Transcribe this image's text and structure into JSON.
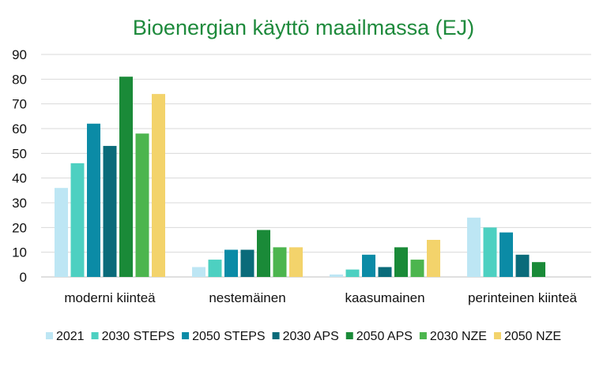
{
  "chart_data": {
    "type": "bar",
    "title": "Bioenergian käyttö maailmassa (EJ)",
    "xlabel": "",
    "ylabel": "",
    "ylim": [
      0,
      90
    ],
    "yticks": [
      0,
      10,
      20,
      30,
      40,
      50,
      60,
      70,
      80,
      90
    ],
    "grid": true,
    "legend_position": "bottom",
    "categories": [
      "moderni kiinteä",
      "nestemäinen",
      "kaasumainen",
      "perinteinen kiinteä"
    ],
    "series": [
      {
        "name": "2021",
        "color": "#bde6f4",
        "values": [
          36,
          4,
          1,
          24
        ]
      },
      {
        "name": "2030 STEPS",
        "color": "#4dd0c1",
        "values": [
          46,
          7,
          3,
          20
        ]
      },
      {
        "name": "2050 STEPS",
        "color": "#0b8ba6",
        "values": [
          62,
          11,
          9,
          18
        ]
      },
      {
        "name": "2030 APS",
        "color": "#0a6b7a",
        "values": [
          53,
          11,
          4,
          9
        ]
      },
      {
        "name": "2050 APS",
        "color": "#1a8a38",
        "values": [
          81,
          19,
          12,
          6
        ]
      },
      {
        "name": "2030 NZE",
        "color": "#4cb54e",
        "values": [
          58,
          12,
          7,
          0
        ]
      },
      {
        "name": "2050 NZE",
        "color": "#f3d36b",
        "values": [
          74,
          12,
          15,
          0
        ]
      }
    ]
  }
}
